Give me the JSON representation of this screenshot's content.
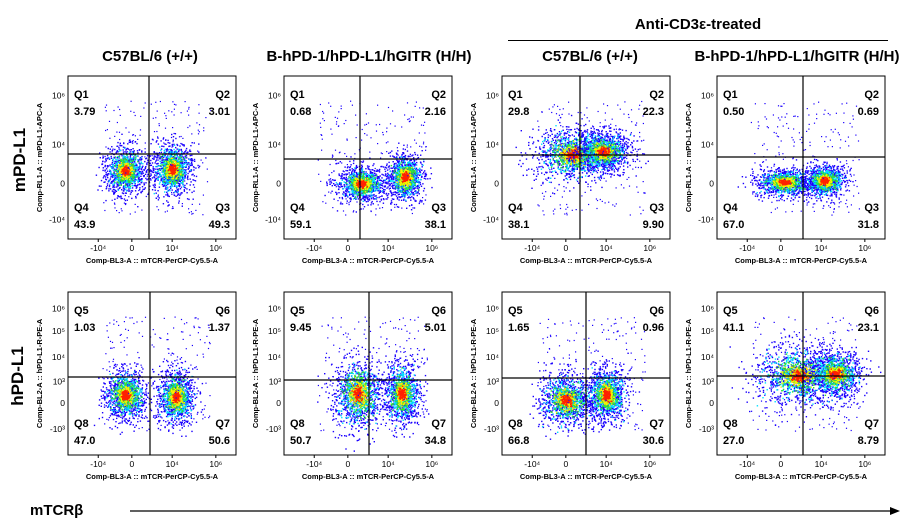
{
  "header": {
    "treatment_label": "Anti-CD3ε-treated",
    "column_titles": [
      "C57BL/6 (+/+)",
      "B-hPD-1/hPD-L1/hGITR (H/H)",
      "C57BL/6 (+/+)",
      "B-hPD-1/hPD-L1/hGITR (H/H)"
    ]
  },
  "row_labels": [
    "mPD-L1",
    "hPD-L1"
  ],
  "x_axis_label": "mTCRβ",
  "colors": {
    "low": "#1a00ff",
    "mid": "#00e0ff",
    "green": "#33dd33",
    "yellow": "#ffee00",
    "high": "#ff2200",
    "gate": "#000000"
  },
  "chart_data": [
    {
      "type": "scatter",
      "row": 0,
      "col": 0,
      "xlabel": "Comp-BL3-A :: mTCR-PerCP-Cy5.5-A",
      "ylabel": "Comp-RL1-A :: mPD-L1-APC-A",
      "x_ticks": [
        "-10⁴",
        "0",
        "10⁴",
        "10⁶"
      ],
      "y_ticks": [
        "10⁶",
        "10⁴",
        "0",
        "-10⁴"
      ],
      "quadrants": [
        {
          "name": "Q1",
          "value": "3.79"
        },
        {
          "name": "Q2",
          "value": "3.01"
        },
        {
          "name": "Q4",
          "value": "43.9"
        },
        {
          "name": "Q3",
          "value": "49.3"
        }
      ]
    },
    {
      "type": "scatter",
      "row": 0,
      "col": 1,
      "xlabel": "Comp-BL3-A :: mTCR-PerCP-Cy5.5-A",
      "ylabel": "Comp-RL1-A :: mPD-L1-APC-A",
      "x_ticks": [
        "-10⁴",
        "0",
        "10⁴",
        "10⁶"
      ],
      "y_ticks": [
        "10⁶",
        "10⁴",
        "0",
        "-10⁴"
      ],
      "quadrants": [
        {
          "name": "Q1",
          "value": "0.68"
        },
        {
          "name": "Q2",
          "value": "2.16"
        },
        {
          "name": "Q4",
          "value": "59.1"
        },
        {
          "name": "Q3",
          "value": "38.1"
        }
      ]
    },
    {
      "type": "scatter",
      "row": 0,
      "col": 2,
      "xlabel": "Comp-BL3-A :: mTCR-PerCP-Cy5.5-A",
      "ylabel": "Comp-RL1-A :: mPD-L1-APC-A",
      "x_ticks": [
        "-10⁴",
        "0",
        "10⁴",
        "10⁶"
      ],
      "y_ticks": [
        "10⁶",
        "10⁴",
        "0",
        "-10⁴"
      ],
      "quadrants": [
        {
          "name": "Q1",
          "value": "29.8"
        },
        {
          "name": "Q2",
          "value": "22.3"
        },
        {
          "name": "Q4",
          "value": "38.1"
        },
        {
          "name": "Q3",
          "value": "9.90"
        }
      ]
    },
    {
      "type": "scatter",
      "row": 0,
      "col": 3,
      "xlabel": "Comp-BL3-A :: mTCR-PerCP-Cy5.5-A",
      "ylabel": "Comp-RL1-A :: mPD-L1-APC-A",
      "x_ticks": [
        "-10⁴",
        "0",
        "10⁴",
        "10⁶"
      ],
      "y_ticks": [
        "10⁶",
        "10⁴",
        "0",
        "-10⁴"
      ],
      "quadrants": [
        {
          "name": "Q1",
          "value": "0.50"
        },
        {
          "name": "Q2",
          "value": "0.69"
        },
        {
          "name": "Q4",
          "value": "67.0"
        },
        {
          "name": "Q3",
          "value": "31.8"
        }
      ]
    },
    {
      "type": "scatter",
      "row": 1,
      "col": 0,
      "xlabel": "Comp-BL3-A :: mTCR-PerCP-Cy5.5-A",
      "ylabel": "Comp-BL2-A :: hPD-L1-R-PE-A",
      "x_ticks": [
        "-10⁴",
        "0",
        "10⁴",
        "10⁶"
      ],
      "y_ticks": [
        "10⁶",
        "10⁵",
        "10⁴",
        "10³",
        "0",
        "-10³"
      ],
      "quadrants": [
        {
          "name": "Q5",
          "value": "1.03"
        },
        {
          "name": "Q6",
          "value": "1.37"
        },
        {
          "name": "Q8",
          "value": "47.0"
        },
        {
          "name": "Q7",
          "value": "50.6"
        }
      ]
    },
    {
      "type": "scatter",
      "row": 1,
      "col": 1,
      "xlabel": "Comp-BL3-A :: mTCR-PerCP-Cy5.5-A",
      "ylabel": "Comp-BL2-A :: hPD-L1-R-PE-A",
      "x_ticks": [
        "-10⁴",
        "0",
        "10⁴",
        "10⁶"
      ],
      "y_ticks": [
        "10⁶",
        "10⁵",
        "10⁴",
        "10³",
        "0",
        "-10³"
      ],
      "quadrants": [
        {
          "name": "Q5",
          "value": "9.45"
        },
        {
          "name": "Q6",
          "value": "5.01"
        },
        {
          "name": "Q8",
          "value": "50.7"
        },
        {
          "name": "Q7",
          "value": "34.8"
        }
      ]
    },
    {
      "type": "scatter",
      "row": 1,
      "col": 2,
      "xlabel": "Comp-BL3-A :: mTCR-PerCP-Cy5.5-A",
      "ylabel": "Comp-BL2-A :: hPD-L1-R-PE-A",
      "x_ticks": [
        "-10⁴",
        "0",
        "10⁴",
        "10⁶"
      ],
      "y_ticks": [
        "10⁶",
        "10⁵",
        "10⁴",
        "10³",
        "0",
        "-10³"
      ],
      "quadrants": [
        {
          "name": "Q5",
          "value": "1.65"
        },
        {
          "name": "Q6",
          "value": "0.96"
        },
        {
          "name": "Q8",
          "value": "66.8"
        },
        {
          "name": "Q7",
          "value": "30.6"
        }
      ]
    },
    {
      "type": "scatter",
      "row": 1,
      "col": 3,
      "xlabel": "Comp-BL3-A :: mTCR-PerCP-Cy5.5-A",
      "ylabel": "Comp-BL2-A :: hPD-L1-R-PE-A",
      "x_ticks": [
        "-10⁴",
        "0",
        "10⁴",
        "10⁶"
      ],
      "y_ticks": [
        "10⁶",
        "10⁵",
        "10⁴",
        "10³",
        "0",
        "-10³"
      ],
      "quadrants": [
        {
          "name": "Q5",
          "value": "41.1"
        },
        {
          "name": "Q6",
          "value": "23.1"
        },
        {
          "name": "Q8",
          "value": "27.0"
        },
        {
          "name": "Q7",
          "value": "8.79"
        }
      ]
    }
  ]
}
